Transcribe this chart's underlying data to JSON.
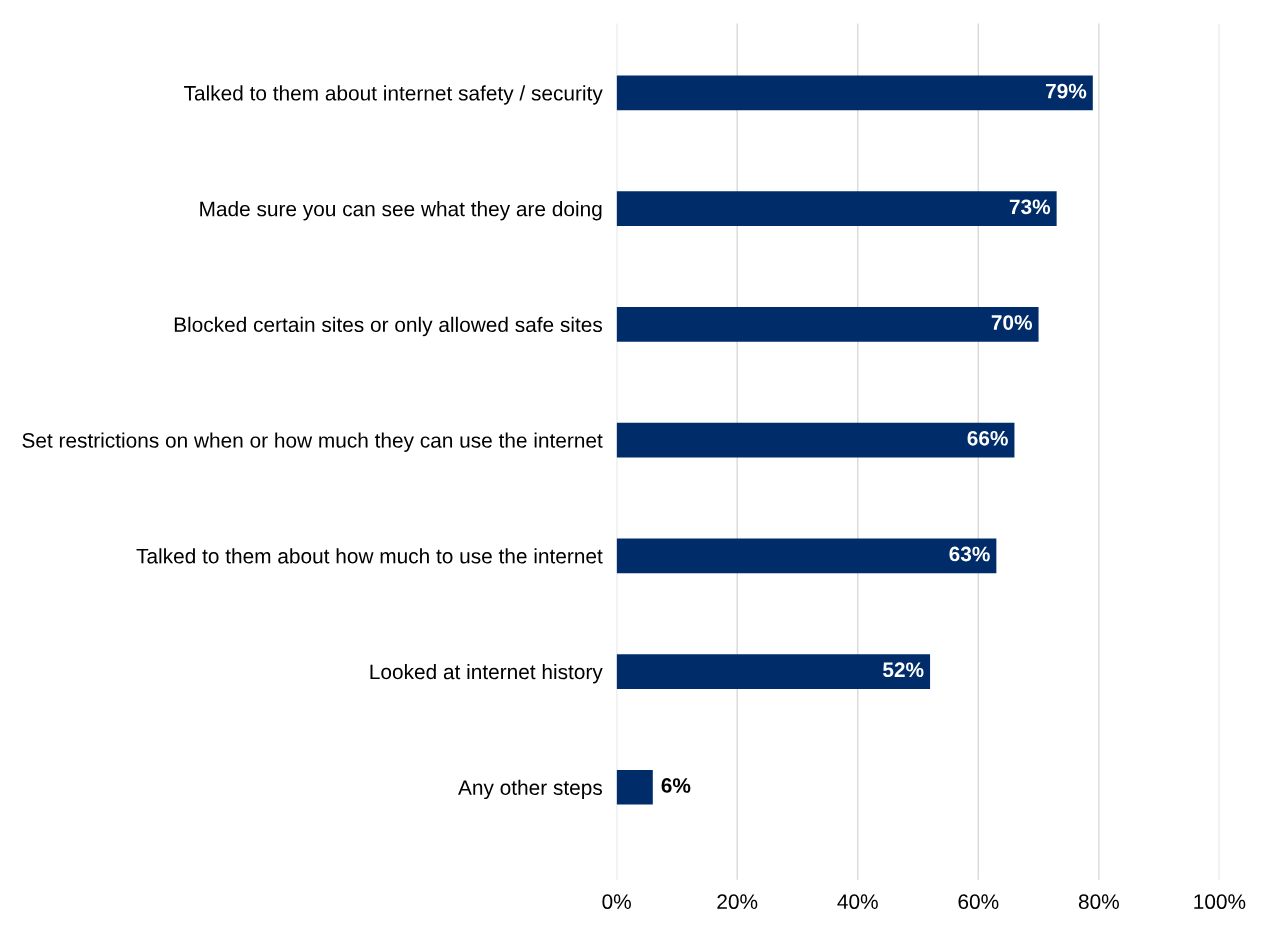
{
  "chart_data": {
    "type": "bar",
    "orientation": "horizontal",
    "categories": [
      "Talked to them about internet safety / security",
      "Made sure you can see what they are doing",
      "Blocked certain sites or only allowed safe sites",
      "Set restrictions on when or how much they can use the internet",
      "Talked to them about how much to use the internet",
      "Looked at internet history",
      "Any other steps"
    ],
    "values": [
      79,
      73,
      70,
      66,
      63,
      52,
      6
    ],
    "value_labels": [
      "79%",
      "73%",
      "70%",
      "66%",
      "63%",
      "52%",
      "6%"
    ],
    "color": "#002d6a",
    "xlim": [
      0,
      100
    ],
    "xticks": [
      {
        "value": 0,
        "label": "0%"
      },
      {
        "value": 20,
        "label": "20%"
      },
      {
        "value": 40,
        "label": "40%"
      },
      {
        "value": 60,
        "label": "60%"
      },
      {
        "value": 80,
        "label": "80%"
      },
      {
        "value": 100,
        "label": "100%"
      }
    ],
    "grid": "x"
  }
}
